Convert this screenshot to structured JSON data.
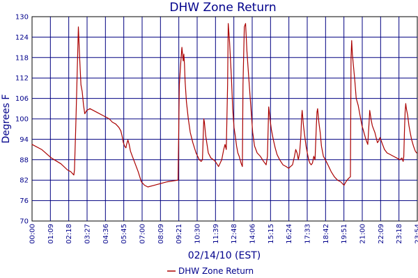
{
  "chart_data": {
    "type": "line",
    "title": "DHW Zone Return",
    "xlabel": "02/14/10 (EST)",
    "ylabel": "Degrees F",
    "ylim": [
      70,
      130
    ],
    "y_ticks": [
      "70",
      "76",
      "82",
      "88",
      "94",
      "100",
      "106",
      "112",
      "118",
      "124",
      "130"
    ],
    "x_ticks": [
      "00:00",
      "01:09",
      "02:18",
      "03:27",
      "04:36",
      "05:45",
      "07:00",
      "08:09",
      "09:21",
      "10:30",
      "11:39",
      "12:48",
      "14:06",
      "15:15",
      "16:24",
      "17:33",
      "18:42",
      "19:51",
      "21:00",
      "22:09",
      "23:18",
      "23:54"
    ],
    "grid": true,
    "legend_position": "bottom-center",
    "colors": {
      "series": "#aa0000",
      "grid": "#000080",
      "text": "#00008b",
      "plot_border": "#000000"
    },
    "series": [
      {
        "name": "DHW Zone Return",
        "points": [
          [
            0,
            92.5
          ],
          [
            15,
            91
          ],
          [
            30,
            88.5
          ],
          [
            45,
            86.8
          ],
          [
            55,
            85
          ],
          [
            60,
            84.5
          ],
          [
            65,
            83.5
          ],
          [
            66,
            85
          ],
          [
            68,
            98
          ],
          [
            70,
            112
          ],
          [
            72,
            127
          ],
          [
            74,
            118
          ],
          [
            76,
            110
          ],
          [
            78,
            108
          ],
          [
            80,
            104
          ],
          [
            82,
            101.5
          ],
          [
            85,
            102.5
          ],
          [
            90,
            103
          ],
          [
            100,
            102
          ],
          [
            110,
            101
          ],
          [
            120,
            100
          ],
          [
            125,
            99
          ],
          [
            130,
            98.5
          ],
          [
            135,
            97.5
          ],
          [
            138,
            96.5
          ],
          [
            140,
            95
          ],
          [
            142,
            93
          ],
          [
            144,
            92
          ],
          [
            146,
            91.5
          ],
          [
            147,
            92.5
          ],
          [
            149,
            93.8
          ],
          [
            151,
            92.5
          ],
          [
            153,
            90.5
          ],
          [
            156,
            89
          ],
          [
            160,
            87
          ],
          [
            165,
            84.5
          ],
          [
            170,
            81.5
          ],
          [
            175,
            80.5
          ],
          [
            180,
            80
          ],
          [
            190,
            80.5
          ],
          [
            200,
            81
          ],
          [
            210,
            81.5
          ],
          [
            220,
            81.8
          ],
          [
            227,
            82
          ],
          [
            229,
            110
          ],
          [
            231,
            116
          ],
          [
            233,
            121
          ],
          [
            234,
            119
          ],
          [
            235,
            117
          ],
          [
            236,
            119
          ],
          [
            237,
            116
          ],
          [
            238,
            111
          ],
          [
            240,
            105
          ],
          [
            243,
            100
          ],
          [
            246,
            96
          ],
          [
            250,
            93
          ],
          [
            255,
            90
          ],
          [
            260,
            88
          ],
          [
            263,
            87.5
          ],
          [
            265,
            88
          ],
          [
            267,
            100
          ],
          [
            268,
            99
          ],
          [
            270,
            95
          ],
          [
            274,
            90
          ],
          [
            278,
            88.5
          ],
          [
            282,
            88
          ],
          [
            285,
            87.5
          ],
          [
            290,
            86
          ],
          [
            295,
            88
          ],
          [
            298,
            91
          ],
          [
            300,
            92.5
          ],
          [
            302,
            91
          ],
          [
            304,
            110
          ],
          [
            305,
            128
          ],
          [
            307,
            123
          ],
          [
            310,
            112
          ],
          [
            312,
            103
          ],
          [
            314,
            97.5
          ],
          [
            316,
            95
          ],
          [
            318,
            92
          ],
          [
            320,
            90
          ],
          [
            322,
            89
          ],
          [
            325,
            87
          ],
          [
            327,
            86
          ],
          [
            328,
            110
          ],
          [
            330,
            127
          ],
          [
            332,
            128
          ],
          [
            334,
            120
          ],
          [
            337,
            112
          ],
          [
            340,
            104
          ],
          [
            343,
            96
          ],
          [
            346,
            92
          ],
          [
            350,
            90
          ],
          [
            355,
            89
          ],
          [
            360,
            87.5
          ],
          [
            364,
            86.5
          ],
          [
            366,
            89
          ],
          [
            368,
            103.5
          ],
          [
            370,
            100
          ],
          [
            372,
            97
          ],
          [
            375,
            94
          ],
          [
            378,
            91.5
          ],
          [
            381,
            89.5
          ],
          [
            385,
            88
          ],
          [
            390,
            86.5
          ],
          [
            395,
            86
          ],
          [
            399,
            85.5
          ],
          [
            402,
            86
          ],
          [
            405,
            86.5
          ],
          [
            408,
            89
          ],
          [
            410,
            91
          ],
          [
            412,
            90
          ],
          [
            414,
            88
          ],
          [
            416,
            90
          ],
          [
            418,
            95
          ],
          [
            419,
            100
          ],
          [
            420,
            102.5
          ],
          [
            422,
            98
          ],
          [
            424,
            95
          ],
          [
            426,
            92
          ],
          [
            428,
            90
          ],
          [
            430,
            88
          ],
          [
            432,
            87
          ],
          [
            434,
            86.5
          ],
          [
            436,
            87
          ],
          [
            438,
            89
          ],
          [
            440,
            88
          ],
          [
            442,
            98
          ],
          [
            443,
            102
          ],
          [
            444,
            103
          ],
          [
            446,
            99
          ],
          [
            448,
            96
          ],
          [
            450,
            92
          ],
          [
            453,
            89
          ],
          [
            456,
            88
          ],
          [
            460,
            86.5
          ],
          [
            465,
            84.5
          ],
          [
            470,
            83
          ],
          [
            475,
            82
          ],
          [
            480,
            81.5
          ],
          [
            485,
            80.5
          ],
          [
            488,
            81.5
          ],
          [
            492,
            82.5
          ],
          [
            495,
            83
          ],
          [
            496,
            118
          ],
          [
            497,
            123
          ],
          [
            498,
            119
          ],
          [
            500,
            115
          ],
          [
            502,
            111
          ],
          [
            504,
            106
          ],
          [
            507,
            104
          ],
          [
            510,
            101
          ],
          [
            513,
            98
          ],
          [
            516,
            96
          ],
          [
            519,
            94
          ],
          [
            522,
            92.5
          ],
          [
            524,
            99
          ],
          [
            525,
            102.5
          ],
          [
            527,
            100
          ],
          [
            529,
            98
          ],
          [
            531,
            97
          ],
          [
            533,
            96
          ],
          [
            535,
            94.5
          ],
          [
            537,
            93
          ],
          [
            539,
            93.5
          ],
          [
            541,
            94.5
          ],
          [
            543,
            93.5
          ],
          [
            545,
            92.5
          ],
          [
            548,
            91
          ],
          [
            552,
            90
          ],
          [
            557,
            89.5
          ],
          [
            562,
            89
          ],
          [
            567,
            88.5
          ],
          [
            572,
            88
          ],
          [
            575,
            88.5
          ],
          [
            577,
            87.5
          ],
          [
            578,
            89
          ],
          [
            579,
            96
          ],
          [
            580,
            102
          ],
          [
            581,
            104.5
          ],
          [
            582,
            103
          ],
          [
            584,
            101
          ],
          [
            586,
            98
          ],
          [
            588,
            96
          ],
          [
            590,
            94
          ],
          [
            593,
            92
          ],
          [
            596,
            90.5
          ],
          [
            598,
            90
          ]
        ]
      }
    ]
  }
}
